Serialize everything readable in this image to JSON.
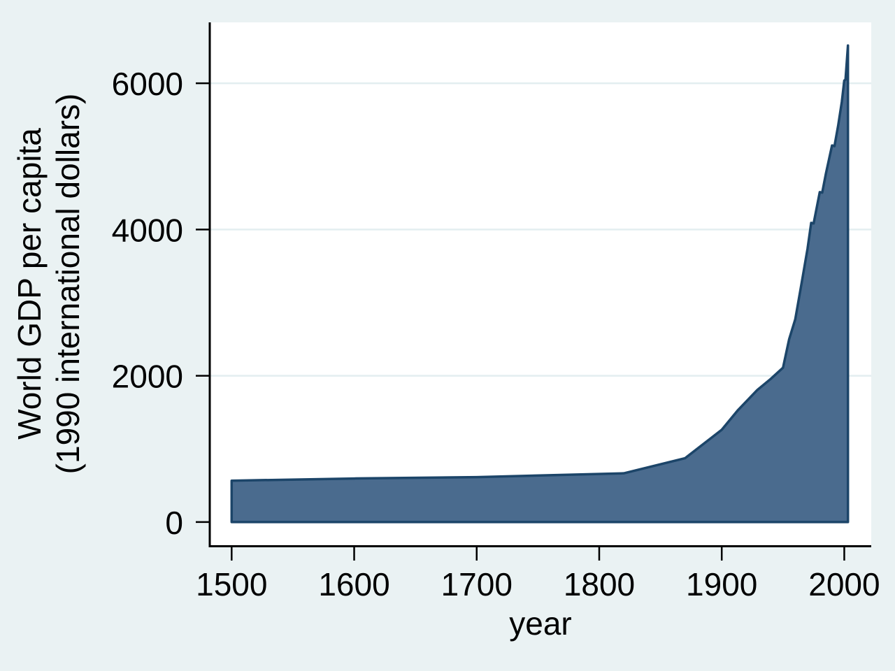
{
  "window": {
    "page_background": "#eaf2f3"
  },
  "chart_data": {
    "type": "area",
    "title": "",
    "xlabel": "year",
    "ylabel_lines": [
      "World GDP per capita",
      "(1990 international dollars)"
    ],
    "series": [
      {
        "name": "World GDP per capita (1990 international dollars)",
        "x": [
          1500,
          1600,
          1700,
          1820,
          1870,
          1900,
          1913,
          1929,
          1940,
          1950,
          1955,
          1960,
          1965,
          1970,
          1973,
          1975,
          1980,
          1982,
          1985,
          1990,
          1992,
          1995,
          1998,
          2000,
          2001,
          2003
        ],
        "values": [
          566,
          596,
          615,
          667,
          873,
          1262,
          1526,
          1806,
          1958,
          2111,
          2500,
          2773,
          3250,
          3736,
          4091,
          4084,
          4512,
          4505,
          4764,
          5150,
          5141,
          5421,
          5746,
          6038,
          6049,
          6516
        ],
        "baseline": 0
      }
    ],
    "x_ticks": [
      1500,
      1600,
      1700,
      1800,
      1900,
      2000
    ],
    "y_ticks": [
      0,
      2000,
      4000,
      6000
    ],
    "gridline_ticks": [
      2000,
      4000,
      6000
    ],
    "xlim": [
      1483,
      2022
    ],
    "ylim": [
      -316,
      6833
    ],
    "grid": {
      "horizontal": true,
      "vertical": false
    },
    "legend": "none",
    "colors": {
      "area_fill": "#4a6b8e",
      "area_stroke": "#1c4569",
      "plot_background": "#ffffff",
      "page_background": "#eaf2f3",
      "gridline": "#e3eef0",
      "axis": "#000000",
      "text": "#000000"
    }
  }
}
